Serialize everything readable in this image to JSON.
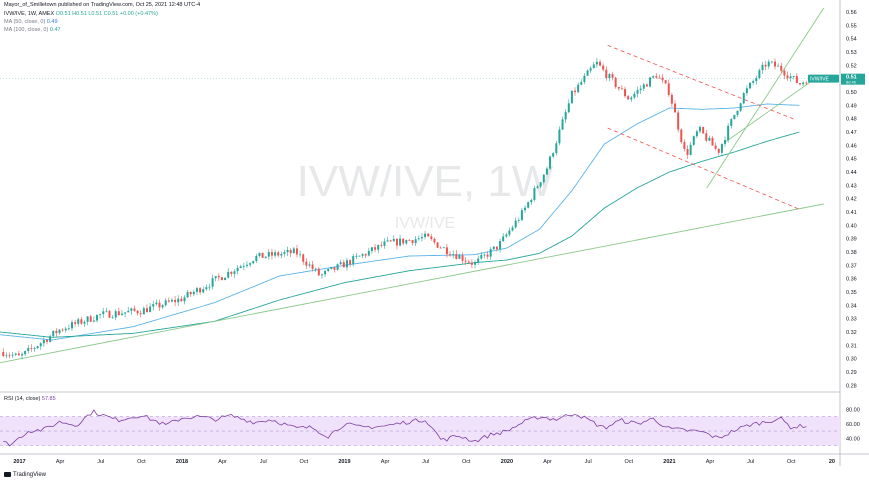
{
  "header": {
    "publish_line": "Mayor_of_Smilletown published on TradingView.com, Oct 25, 2021 12:48 UTC-4",
    "symbol_line": "IVW/IVE, 1W, AMEX",
    "ohlc": "O0.51  H0.51  L0.51  C0.51  +0.00 (+0.47%)",
    "ma50_label": "MA (50, close, 0)",
    "ma50_value": "0.49",
    "ma100_label": "MA (100, close, 0)",
    "ma100_value": "0.47"
  },
  "watermark": {
    "big": "IVW/IVE, 1W",
    "small": "IVW/IVE"
  },
  "price_tag": {
    "symbol": "IVW/IVE",
    "value": "0.51",
    "sub": "6d 4h"
  },
  "rsi": {
    "label": "RSI (14, close)",
    "value": "57.85"
  },
  "footer": {
    "brand": "TradingView"
  },
  "colors": {
    "up": "#26a69a",
    "down": "#ef5350",
    "ma50": "#5bb4ea",
    "ma100": "#26a69a",
    "trend": "#8bc98b",
    "channel": "#ef5350",
    "rsi_line": "#7e3fa0",
    "rsi_band": "#efe2fa"
  },
  "chart_data": [
    {
      "type": "candlestick",
      "title": "IVW/IVE, 1W, AMEX",
      "x_tick_labels": [
        "2017",
        "Apr",
        "Jul",
        "Oct",
        "2018",
        "Apr",
        "Jul",
        "Oct",
        "2019",
        "Apr",
        "Jul",
        "Oct",
        "2020",
        "Apr",
        "Jul",
        "Oct",
        "2021",
        "Apr",
        "Jul",
        "Oct",
        "20"
      ],
      "x_tick_dates": [
        2017.0,
        2017.25,
        2017.5,
        2017.75,
        2018.0,
        2018.25,
        2018.5,
        2018.75,
        2019.0,
        2019.25,
        2019.5,
        2019.75,
        2020.0,
        2020.25,
        2020.5,
        2020.75,
        2021.0,
        2021.25,
        2021.5,
        2021.75,
        2022.0
      ],
      "y_tick_labels": [
        "0.28",
        "0.29",
        "0.30",
        "0.31",
        "0.32",
        "0.33",
        "0.34",
        "0.35",
        "0.36",
        "0.37",
        "0.38",
        "0.39",
        "0.40",
        "0.41",
        "0.42",
        "0.43",
        "0.44",
        "0.45",
        "0.46",
        "0.47",
        "0.48",
        "0.49",
        "0.50",
        "0.51",
        "0.52",
        "0.53",
        "0.54",
        "0.55",
        "0.56"
      ],
      "ylim": [
        0.275,
        0.563
      ],
      "xlim": [
        2016.88,
        2022.05
      ],
      "price_anchors": {
        "t": [
          2016.9,
          2017.0,
          2017.25,
          2017.5,
          2017.75,
          2018.0,
          2018.25,
          2018.45,
          2018.7,
          2018.85,
          2019.0,
          2019.25,
          2019.5,
          2019.62,
          2019.8,
          2019.95,
          2020.1,
          2020.25,
          2020.4,
          2020.55,
          2020.62,
          2020.75,
          2020.92,
          2021.0,
          2021.1,
          2021.18,
          2021.3,
          2021.45,
          2021.6,
          2021.68,
          2021.8,
          2021.85
        ],
        "close": [
          0.305,
          0.301,
          0.322,
          0.333,
          0.336,
          0.345,
          0.362,
          0.376,
          0.38,
          0.362,
          0.371,
          0.386,
          0.391,
          0.382,
          0.371,
          0.385,
          0.41,
          0.444,
          0.498,
          0.522,
          0.512,
          0.495,
          0.513,
          0.5,
          0.452,
          0.472,
          0.455,
          0.497,
          0.522,
          0.518,
          0.506,
          0.51
        ]
      },
      "ma50": {
        "t": [
          2016.88,
          2017.2,
          2017.7,
          2018.2,
          2018.6,
          2019.0,
          2019.4,
          2019.8,
          2020.0,
          2020.2,
          2020.4,
          2020.6,
          2020.8,
          2021.0,
          2021.2,
          2021.4,
          2021.6,
          2021.8
        ],
        "values": [
          0.318,
          0.314,
          0.324,
          0.342,
          0.362,
          0.37,
          0.377,
          0.378,
          0.383,
          0.397,
          0.426,
          0.461,
          0.476,
          0.488,
          0.487,
          0.488,
          0.491,
          0.49
        ]
      },
      "ma100": {
        "t": [
          2016.88,
          2017.2,
          2017.7,
          2018.2,
          2018.6,
          2019.0,
          2019.4,
          2019.8,
          2020.0,
          2020.2,
          2020.4,
          2020.6,
          2020.8,
          2021.0,
          2021.2,
          2021.4,
          2021.6,
          2021.8
        ],
        "values": [
          0.32,
          0.316,
          0.319,
          0.328,
          0.344,
          0.357,
          0.366,
          0.372,
          0.374,
          0.379,
          0.392,
          0.413,
          0.428,
          0.44,
          0.448,
          0.455,
          0.463,
          0.47
        ]
      },
      "trend_lines": [
        {
          "p1": [
            2016.88,
            0.297
          ],
          "p2": [
            2021.95,
            0.416
          ]
        },
        {
          "p1": [
            2021.23,
            0.428
          ],
          "p2": [
            2021.95,
            0.563
          ]
        },
        {
          "p1": [
            2021.35,
            0.463
          ],
          "p2": [
            2021.92,
            0.512
          ]
        }
      ],
      "channel_lines": [
        {
          "p1": [
            2020.62,
            0.535
          ],
          "p2": [
            2021.78,
            0.479
          ]
        },
        {
          "p1": [
            2020.62,
            0.473
          ],
          "p2": [
            2021.8,
            0.412
          ]
        }
      ],
      "last_price": 0.51
    },
    {
      "type": "line",
      "title": "RSI (14, close)",
      "y_tick_labels": [
        "80.00",
        "60.00",
        "40.00"
      ],
      "ylim": [
        24,
        90
      ],
      "band": [
        30,
        70
      ],
      "rsi_anchors": {
        "t": [
          2016.9,
          2016.95,
          2017.05,
          2017.15,
          2017.25,
          2017.35,
          2017.45,
          2017.6,
          2017.75,
          2017.9,
          2018.0,
          2018.1,
          2018.2,
          2018.3,
          2018.45,
          2018.55,
          2018.7,
          2018.8,
          2018.9,
          2019.0,
          2019.1,
          2019.25,
          2019.4,
          2019.5,
          2019.6,
          2019.7,
          2019.8,
          2019.9,
          2020.0,
          2020.1,
          2020.2,
          2020.3,
          2020.42,
          2020.52,
          2020.6,
          2020.7,
          2020.8,
          2020.9,
          2021.0,
          2021.1,
          2021.2,
          2021.3,
          2021.4,
          2021.5,
          2021.6,
          2021.68,
          2021.75,
          2021.85
        ],
        "values": [
          34,
          32,
          50,
          52,
          63,
          58,
          77,
          65,
          72,
          58,
          68,
          70,
          66,
          71,
          62,
          66,
          54,
          55,
          43,
          60,
          55,
          57,
          63,
          66,
          37,
          44,
          36,
          45,
          50,
          62,
          70,
          66,
          75,
          63,
          54,
          65,
          60,
          67,
          53,
          51,
          49,
          40,
          51,
          59,
          63,
          68,
          55,
          58
        ]
      }
    }
  ]
}
